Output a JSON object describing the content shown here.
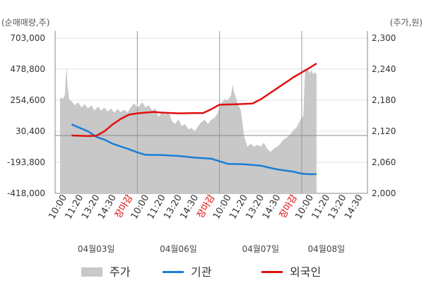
{
  "chart_data": {
    "type": "line",
    "left_axis_label": "(순매매량,주)",
    "right_axis_label": "(주가,원)",
    "left_ticks": [
      "703,000",
      "478,800",
      "254,600",
      "30,400",
      "-193,800",
      "-418,000"
    ],
    "right_ticks": [
      "2,300",
      "2,240",
      "2,180",
      "2,120",
      "2,060",
      "2,000"
    ],
    "ylim_left": [
      -418000,
      703000
    ],
    "ylim_right": [
      2000,
      2300
    ],
    "x_tick_labels": [
      {
        "text": "10:00",
        "red": false
      },
      {
        "text": "11:20",
        "red": false
      },
      {
        "text": "13:20",
        "red": false
      },
      {
        "text": "14:30",
        "red": false
      },
      {
        "text": "장마감",
        "red": true
      },
      {
        "text": "10:00",
        "red": false
      },
      {
        "text": "11:20",
        "red": false
      },
      {
        "text": "13:20",
        "red": false
      },
      {
        "text": "14:30",
        "red": false
      },
      {
        "text": "장마감",
        "red": true
      },
      {
        "text": "10:00",
        "red": false
      },
      {
        "text": "11:20",
        "red": false
      },
      {
        "text": "13:20",
        "red": false
      },
      {
        "text": "14:30",
        "red": false
      },
      {
        "text": "장마감",
        "red": true
      },
      {
        "text": "10:00",
        "red": false
      },
      {
        "text": "11:20",
        "red": false
      },
      {
        "text": "13:20",
        "red": false
      },
      {
        "text": "14:30",
        "red": false
      }
    ],
    "dates": [
      {
        "label": "04월03일",
        "slot": 2
      },
      {
        "label": "04월06일",
        "slot": 7
      },
      {
        "label": "04월07일",
        "slot": 12
      },
      {
        "label": "04월08일",
        "slot": 16
      }
    ],
    "day_boundaries": [
      4.5,
      9.5,
      14.5
    ],
    "series": [
      {
        "name": "주가",
        "color": "#c8c8c8",
        "axis": "right",
        "style": "area",
        "points": [
          [
            -0.2,
            2185
          ],
          [
            0.0,
            2183
          ],
          [
            0.1,
            2192
          ],
          [
            0.15,
            2225
          ],
          [
            0.2,
            2244
          ],
          [
            0.25,
            2210
          ],
          [
            0.35,
            2182
          ],
          [
            0.5,
            2178
          ],
          [
            0.7,
            2170
          ],
          [
            0.9,
            2176
          ],
          [
            1.1,
            2166
          ],
          [
            1.3,
            2172
          ],
          [
            1.5,
            2164
          ],
          [
            1.7,
            2170
          ],
          [
            1.9,
            2160
          ],
          [
            2.1,
            2168
          ],
          [
            2.3,
            2160
          ],
          [
            2.5,
            2166
          ],
          [
            2.7,
            2158
          ],
          [
            2.9,
            2164
          ],
          [
            3.1,
            2156
          ],
          [
            3.3,
            2163
          ],
          [
            3.5,
            2157
          ],
          [
            3.7,
            2162
          ],
          [
            3.9,
            2156
          ],
          [
            4.1,
            2166
          ],
          [
            4.3,
            2174
          ],
          [
            4.5,
            2166
          ],
          [
            4.6,
            2168
          ],
          [
            4.8,
            2176
          ],
          [
            5.0,
            2166
          ],
          [
            5.2,
            2170
          ],
          [
            5.4,
            2160
          ],
          [
            5.6,
            2164
          ],
          [
            5.8,
            2148
          ],
          [
            6.0,
            2158
          ],
          [
            6.2,
            2152
          ],
          [
            6.4,
            2158
          ],
          [
            6.6,
            2140
          ],
          [
            6.8,
            2134
          ],
          [
            7.0,
            2143
          ],
          [
            7.2,
            2130
          ],
          [
            7.4,
            2134
          ],
          [
            7.6,
            2124
          ],
          [
            7.8,
            2126
          ],
          [
            8.0,
            2120
          ],
          [
            8.2,
            2130
          ],
          [
            8.4,
            2138
          ],
          [
            8.6,
            2142
          ],
          [
            8.8,
            2134
          ],
          [
            9.0,
            2142
          ],
          [
            9.2,
            2146
          ],
          [
            9.4,
            2156
          ],
          [
            9.5,
            2166
          ],
          [
            9.6,
            2174
          ],
          [
            9.8,
            2182
          ],
          [
            10.0,
            2180
          ],
          [
            10.2,
            2190
          ],
          [
            10.3,
            2210
          ],
          [
            10.4,
            2194
          ],
          [
            10.6,
            2175
          ],
          [
            10.8,
            2160
          ],
          [
            11.0,
            2110
          ],
          [
            11.2,
            2090
          ],
          [
            11.4,
            2096
          ],
          [
            11.6,
            2090
          ],
          [
            11.8,
            2094
          ],
          [
            12.0,
            2090
          ],
          [
            12.2,
            2098
          ],
          [
            12.4,
            2086
          ],
          [
            12.6,
            2080
          ],
          [
            12.8,
            2086
          ],
          [
            13.0,
            2090
          ],
          [
            13.2,
            2096
          ],
          [
            13.4,
            2104
          ],
          [
            13.6,
            2108
          ],
          [
            13.8,
            2114
          ],
          [
            14.0,
            2122
          ],
          [
            14.2,
            2128
          ],
          [
            14.4,
            2140
          ],
          [
            14.5,
            2146
          ],
          [
            14.6,
            2150
          ],
          [
            14.7,
            2235
          ],
          [
            14.8,
            2242
          ],
          [
            14.9,
            2238
          ],
          [
            15.0,
            2232
          ],
          [
            15.1,
            2238
          ],
          [
            15.2,
            2230
          ],
          [
            15.3,
            2234
          ],
          [
            15.4,
            2230
          ]
        ]
      },
      {
        "name": "기관",
        "color": "#1a7fd4",
        "axis": "left",
        "style": "line",
        "points": [
          [
            0.5,
            80000
          ],
          [
            1.0,
            55000
          ],
          [
            1.5,
            30000
          ],
          [
            2.0,
            -10000
          ],
          [
            2.5,
            -30000
          ],
          [
            3.0,
            -60000
          ],
          [
            3.5,
            -80000
          ],
          [
            4.0,
            -100000
          ],
          [
            4.5,
            -122000
          ],
          [
            5.0,
            -140000
          ],
          [
            6.0,
            -142000
          ],
          [
            7.0,
            -148000
          ],
          [
            8.0,
            -160000
          ],
          [
            9.0,
            -168000
          ],
          [
            9.5,
            -186000
          ],
          [
            10.0,
            -205000
          ],
          [
            11.0,
            -208000
          ],
          [
            12.0,
            -218000
          ],
          [
            12.5,
            -232000
          ],
          [
            13.0,
            -245000
          ],
          [
            14.0,
            -262000
          ],
          [
            14.5,
            -276000
          ],
          [
            15.0,
            -280000
          ],
          [
            15.4,
            -280000
          ]
        ]
      },
      {
        "name": "외국인",
        "color": "#e01010",
        "axis": "left",
        "style": "line",
        "points": [
          [
            0.5,
            0
          ],
          [
            1.0,
            -2000
          ],
          [
            1.5,
            -4000
          ],
          [
            2.0,
            -2000
          ],
          [
            2.5,
            30000
          ],
          [
            3.0,
            80000
          ],
          [
            3.5,
            120000
          ],
          [
            4.0,
            150000
          ],
          [
            4.5,
            160000
          ],
          [
            5.0,
            165000
          ],
          [
            5.5,
            170000
          ],
          [
            6.0,
            165000
          ],
          [
            7.0,
            160000
          ],
          [
            8.0,
            162000
          ],
          [
            8.5,
            162000
          ],
          [
            9.0,
            190000
          ],
          [
            9.5,
            222000
          ],
          [
            10.5,
            225000
          ],
          [
            11.5,
            230000
          ],
          [
            12.0,
            260000
          ],
          [
            12.5,
            300000
          ],
          [
            13.0,
            340000
          ],
          [
            13.5,
            380000
          ],
          [
            14.0,
            420000
          ],
          [
            14.5,
            455000
          ],
          [
            15.0,
            490000
          ],
          [
            15.4,
            520000
          ]
        ]
      }
    ],
    "ref_line_left_value": 0,
    "legend": [
      {
        "name": "주가",
        "style": "area"
      },
      {
        "name": "기관",
        "style": "line"
      },
      {
        "name": "외국인",
        "style": "line"
      }
    ]
  },
  "colors": {
    "price": "#c8c8c8",
    "institution": "#1a7fd4",
    "foreign": "#e01010",
    "grid": "#e0e0e0",
    "axis": "#888888",
    "tick_red": "#e00000"
  }
}
